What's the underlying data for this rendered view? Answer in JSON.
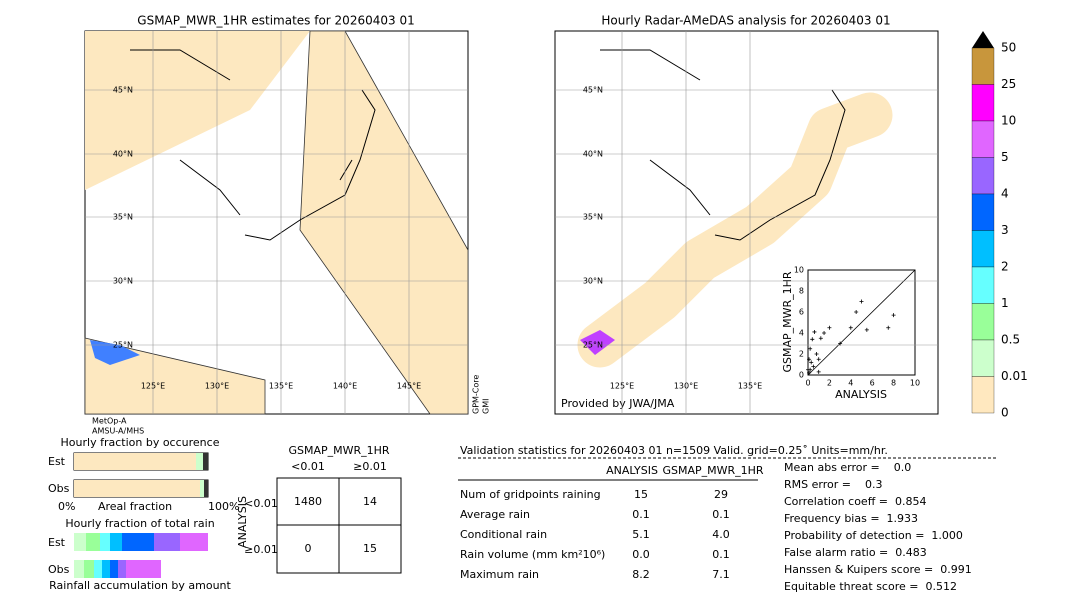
{
  "left_map": {
    "title": "GSMAP_MWR_1HR estimates for 20260403 01",
    "lat_labels": [
      "45°N",
      "40°N",
      "35°N",
      "30°N",
      "25°N"
    ],
    "lon_labels": [
      "125°E",
      "130°E",
      "135°E",
      "140°E",
      "145°E"
    ],
    "sensor_bottom": [
      "MetOp-A",
      "AMSU-A/MHS"
    ],
    "sensor_side": [
      "GPM-Core",
      "GMI"
    ]
  },
  "right_map": {
    "title": "Hourly Radar-AMeDAS analysis for 20260403 01",
    "lat_labels": [
      "45°N",
      "40°N",
      "35°N",
      "30°N",
      "25°N"
    ],
    "lon_labels": [
      "125°E",
      "130°E",
      "135°E"
    ],
    "credit": "Provided by JWA/JMA"
  },
  "colorbar": {
    "labels": [
      "50",
      "25",
      "10",
      "5",
      "4",
      "3",
      "2",
      "1",
      "0.5",
      "0.01",
      "0"
    ],
    "colors": [
      "#c8963c",
      "#ff00ff",
      "#e066ff",
      "#9966ff",
      "#0066ff",
      "#00bfff",
      "#66ffff",
      "#99ff99",
      "#ccffcc",
      "#ffe8bf"
    ]
  },
  "scatter": {
    "xlabel": "ANALYSIS",
    "ylabel": "GSMAP_MWR_1HR",
    "ticks": [
      "0",
      "2",
      "4",
      "6",
      "8",
      "10"
    ],
    "xlim": [
      0,
      10
    ],
    "ylim": [
      0,
      10
    ],
    "points": [
      [
        0.1,
        0.2
      ],
      [
        0.2,
        0.5
      ],
      [
        0.3,
        1.2
      ],
      [
        0.5,
        0.8
      ],
      [
        0.2,
        2.5
      ],
      [
        0.4,
        3.4
      ],
      [
        0.6,
        4.1
      ],
      [
        1,
        1.5
      ],
      [
        1.2,
        3.5
      ],
      [
        1.5,
        4
      ],
      [
        0.8,
        2
      ],
      [
        2,
        4.5
      ],
      [
        3,
        3
      ],
      [
        4,
        4.5
      ],
      [
        4.5,
        6
      ],
      [
        5,
        7
      ],
      [
        5.5,
        4.3
      ],
      [
        7.5,
        4.5
      ],
      [
        8,
        5.7
      ],
      [
        0,
        0.5
      ],
      [
        0.1,
        1.5
      ],
      [
        1,
        0.3
      ]
    ]
  },
  "occurrence": {
    "title": "Hourly fraction by occurence",
    "rows": [
      "Est",
      "Obs"
    ],
    "left": "0%",
    "middle": "Areal fraction",
    "right": "100%"
  },
  "total_rain": {
    "title": "Hourly fraction of total rain",
    "rows": [
      "Est",
      "Obs"
    ],
    "footer": "Rainfall accumulation by amount"
  },
  "contingency": {
    "title": "GSMAP_MWR_1HR",
    "cols": [
      "<0.01",
      "≥0.01"
    ],
    "side": "ANALYSIS",
    "rows": [
      "<0.01",
      "≥0.01"
    ],
    "cells": [
      [
        "1480",
        "14"
      ],
      [
        "0",
        "15"
      ]
    ]
  },
  "validation": {
    "header": "Validation statistics for 20260403 01  n=1509 Valid. grid=0.25˚ Units=mm/hr.",
    "columns": [
      "ANALYSIS",
      "GSMAP_MWR_1HR"
    ],
    "rows": [
      [
        "Num of gridpoints raining",
        "15",
        "29"
      ],
      [
        "Average rain",
        "0.1",
        "0.1"
      ],
      [
        "Conditional rain",
        "5.1",
        "4.0"
      ],
      [
        "Rain volume (mm km²10⁶)",
        "0.0",
        "0.1"
      ],
      [
        "Maximum rain",
        "8.2",
        "7.1"
      ]
    ],
    "scores": [
      "Mean abs error =    0.0",
      "RMS error =    0.3",
      "Correlation coeff =  0.854",
      "Frequency bias =  1.933",
      "Probability of detection =  1.000",
      "False alarm ratio =  0.483",
      "Hanssen & Kuipers score =  0.991",
      "Equitable threat score =  0.512"
    ]
  }
}
